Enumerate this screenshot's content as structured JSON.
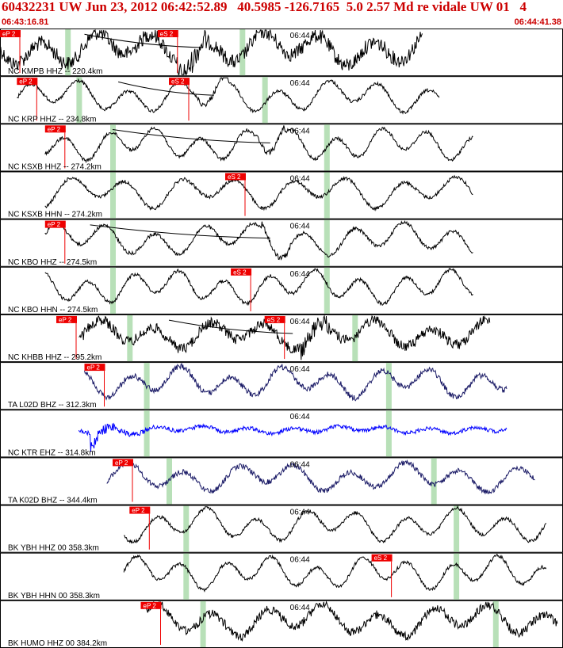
{
  "header": {
    "title": "60432231 UW Jun 23, 2012 06:42:52.89   40.5985 -126.7165  5.0 2.57 Md re vidale UW 01   4",
    "start_time": "06:43:16.81",
    "end_time": "06:44:41.38"
  },
  "colors": {
    "pick": "#ee0000",
    "pick_text": "#ffffff",
    "marker": "#b8e0b8",
    "label": "#000000",
    "border": "#000000"
  },
  "traces": [
    {
      "label": "NC KMPB HHZ -- 220.4km",
      "time": "06:44",
      "color": "#000000",
      "noise": 0.8,
      "amp": 0.85,
      "start": 0.0,
      "end": 0.75,
      "burst": 0.34,
      "picks": [
        {
          "text": "eP 2",
          "at": 0.0
        },
        {
          "text": "eS 2",
          "at": 0.28
        }
      ],
      "markers": [
        0.12,
        0.43
      ],
      "curve": [
        0.15,
        0.36
      ]
    },
    {
      "label": "NC KRP HHZ -- 234.8km",
      "time": "06:44",
      "color": "#000000",
      "noise": 0.2,
      "amp": 0.8,
      "start": 0.03,
      "end": 0.78,
      "burst": 0.38,
      "picks": [
        {
          "text": "eP 2",
          "at": 0.03
        },
        {
          "text": "eS 2",
          "at": 0.3
        }
      ],
      "markers": [
        0.14,
        0.47
      ],
      "curve": [
        0.21,
        0.38
      ]
    },
    {
      "label": "NC KSXB HHZ -- 274.2km",
      "time": "06:44",
      "color": "#000000",
      "noise": 0.2,
      "amp": 0.8,
      "start": 0.08,
      "end": 0.84,
      "burst": 0.48,
      "picks": [
        {
          "text": "eP 2",
          "at": 0.08
        }
      ],
      "markers": [
        0.2,
        0.58
      ],
      "curve": [
        0.2,
        0.48
      ]
    },
    {
      "label": "NC KSXB HHN -- 274.2km",
      "time": "06:44",
      "color": "#000000",
      "noise": 0.2,
      "amp": 0.8,
      "start": 0.08,
      "end": 0.84,
      "burst": -1,
      "picks": [
        {
          "text": "eS 2",
          "at": 0.4
        }
      ],
      "markers": [
        0.2,
        0.58
      ],
      "curve": []
    },
    {
      "label": "NC KBO HHZ -- 274.5km",
      "time": "06:44",
      "color": "#000000",
      "noise": 0.2,
      "amp": 0.8,
      "start": 0.08,
      "end": 0.84,
      "burst": 0.49,
      "picks": [
        {
          "text": "eP 2",
          "at": 0.08
        }
      ],
      "markers": [
        0.2,
        0.58
      ],
      "curve": [
        0.16,
        0.48
      ]
    },
    {
      "label": "NC KBO HHN -- 274.5km",
      "time": "06:44",
      "color": "#000000",
      "noise": 0.2,
      "amp": 0.8,
      "start": 0.08,
      "end": 0.84,
      "burst": -1,
      "picks": [
        {
          "text": "eS 2",
          "at": 0.41
        }
      ],
      "markers": [
        0.2,
        0.58
      ],
      "curve": []
    },
    {
      "label": "NC KHBB HHZ -- 295.2km",
      "time": "06:44",
      "color": "#000000",
      "noise": 0.7,
      "amp": 0.7,
      "start": 0.14,
      "end": 0.87,
      "burst": 0.56,
      "picks": [
        {
          "text": "eP 2",
          "at": 0.1
        },
        {
          "text": "eS 2",
          "at": 0.47
        }
      ],
      "markers": [
        0.23,
        0.63
      ],
      "curve": [
        0.3,
        0.52
      ]
    },
    {
      "label": "TA L02D BHZ -- 312.3km",
      "time": "06:44",
      "color": "#1a1a66",
      "noise": 0.35,
      "amp": 0.75,
      "start": 0.15,
      "end": 0.9,
      "burst": -1,
      "picks": [
        {
          "text": "eP 2",
          "at": 0.15
        }
      ],
      "markers": [
        0.26,
        0.69
      ],
      "curve": []
    },
    {
      "label": "NC KTR EHZ -- 314.8km",
      "time": "06:44",
      "color": "#0000ff",
      "noise": 1.0,
      "amp": 0.18,
      "start": 0.14,
      "end": 0.9,
      "burst": 0.2,
      "picks": [],
      "markers": [
        0.26,
        0.69
      ],
      "curve": []
    },
    {
      "label": "TA K02D BHZ -- 344.4km",
      "time": "06:44",
      "color": "#1a1a66",
      "noise": 0.35,
      "amp": 0.7,
      "start": 0.19,
      "end": 0.95,
      "burst": -1,
      "picks": [
        {
          "text": "eP 2",
          "at": 0.2
        }
      ],
      "markers": [
        0.3,
        0.77
      ],
      "curve": []
    },
    {
      "label": "BK YBH HHZ 00 358.3km",
      "time": "06:44",
      "color": "#000000",
      "noise": 0.2,
      "amp": 0.8,
      "start": 0.22,
      "end": 0.97,
      "burst": -1,
      "picks": [
        {
          "text": "eP 2",
          "at": 0.23
        }
      ],
      "markers": [
        0.33,
        0.81
      ],
      "curve": []
    },
    {
      "label": "BK YBH HHN 00 358.3km",
      "time": "06:44",
      "color": "#000000",
      "noise": 0.2,
      "amp": 0.8,
      "start": 0.22,
      "end": 0.97,
      "burst": -1,
      "picks": [
        {
          "text": "eS 2",
          "at": 0.66
        }
      ],
      "markers": [
        0.33,
        0.81
      ],
      "curve": []
    },
    {
      "label": "BK HUMO HHZ 00 384.2km",
      "time": "06:44",
      "color": "#000000",
      "noise": 0.5,
      "amp": 0.8,
      "start": 0.26,
      "end": 0.99,
      "burst": -1,
      "picks": [
        {
          "text": "eP 2",
          "at": 0.25
        }
      ],
      "markers": [
        0.36,
        0.88
      ],
      "curve": []
    }
  ]
}
